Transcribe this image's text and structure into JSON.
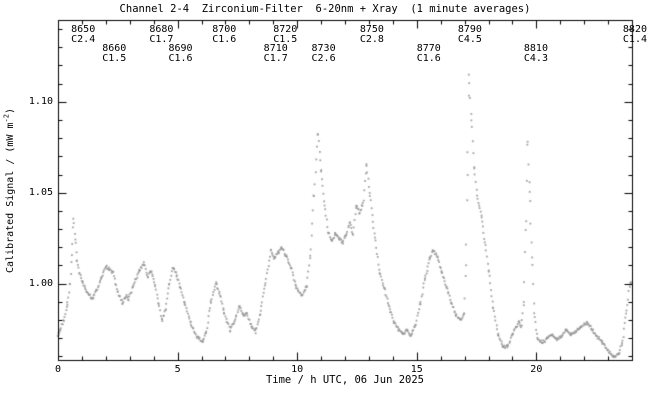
{
  "title": "Channel 2-4  Zirconium-Filter  6-20nm + Xray  (1 minute averages)",
  "x_axis": {
    "label": "Time / h UTC, 06 Jun 2025",
    "major_ticks": [
      {
        "v": 0,
        "label": "0"
      },
      {
        "v": 5,
        "label": "5"
      },
      {
        "v": 10,
        "label": "10"
      },
      {
        "v": 15,
        "label": "15"
      },
      {
        "v": 20,
        "label": "20"
      }
    ],
    "minor_step": 1,
    "range": [
      0,
      24
    ]
  },
  "y_axis": {
    "label_prefix": "Calibrated Signal / (mW m",
    "label_sup": "-2",
    "label_suffix": ")",
    "major_ticks": [
      {
        "v": 1.0,
        "label": "1.00"
      },
      {
        "v": 1.05,
        "label": "1.05"
      },
      {
        "v": 1.1,
        "label": "1.10"
      }
    ],
    "minor_step": 0.01,
    "range": [
      0.958,
      1.145
    ]
  },
  "colors": {
    "points": "#949494",
    "axis": "#000000",
    "background": "#ffffff"
  },
  "flare_annotations": [
    {
      "id": "8650",
      "class": "C2.4",
      "t": 0.55,
      "row": 1
    },
    {
      "id": "8660",
      "class": "C1.5",
      "t": 1.85,
      "row": 2
    },
    {
      "id": "8680",
      "class": "C1.7",
      "t": 3.82,
      "row": 1
    },
    {
      "id": "8690",
      "class": "C1.6",
      "t": 4.62,
      "row": 2
    },
    {
      "id": "8700",
      "class": "C1.6",
      "t": 6.45,
      "row": 1
    },
    {
      "id": "8710",
      "class": "C1.7",
      "t": 8.6,
      "row": 2
    },
    {
      "id": "8720",
      "class": "C1.5",
      "t": 9.0,
      "row": 1
    },
    {
      "id": "8730",
      "class": "C2.6",
      "t": 10.6,
      "row": 2
    },
    {
      "id": "8750",
      "class": "C2.8",
      "t": 12.62,
      "row": 1
    },
    {
      "id": "8770",
      "class": "C1.6",
      "t": 15.0,
      "row": 2
    },
    {
      "id": "8790",
      "class": "C4.5",
      "t": 16.72,
      "row": 1
    },
    {
      "id": "8810",
      "class": "C4.3",
      "t": 19.48,
      "row": 2
    },
    {
      "id": "8820",
      "class": "C1.4",
      "t": 23.62,
      "row": 1
    }
  ],
  "chart_data": {
    "type": "scatter",
    "title": "Channel 2-4  Zirconium-Filter  6-20nm + Xray  (1 minute averages)",
    "xlabel": "Time / h UTC, 06 Jun 2025",
    "ylabel": "Calibrated Signal / (mW m^-2)",
    "xlim": [
      0,
      24
    ],
    "ylim": [
      0.958,
      1.145
    ],
    "cadence": "1 minute averages",
    "key_points": [
      [
        0.0,
        0.972
      ],
      [
        0.1,
        0.9745
      ],
      [
        0.25,
        0.98
      ],
      [
        0.4,
        0.989
      ],
      [
        0.5,
        0.999
      ],
      [
        0.58,
        1.015
      ],
      [
        0.65,
        1.036
      ],
      [
        0.72,
        1.024
      ],
      [
        0.8,
        1.013
      ],
      [
        0.9,
        1.006
      ],
      [
        1.05,
        1.0
      ],
      [
        1.2,
        0.996
      ],
      [
        1.45,
        0.9915
      ],
      [
        1.6,
        0.996
      ],
      [
        1.8,
        1.003
      ],
      [
        2.0,
        1.0095
      ],
      [
        2.15,
        1.008
      ],
      [
        2.3,
        1.006
      ],
      [
        2.5,
        0.995
      ],
      [
        2.7,
        0.9895
      ],
      [
        2.85,
        0.9935
      ],
      [
        2.95,
        0.9915
      ],
      [
        3.15,
        0.999
      ],
      [
        3.4,
        1.007
      ],
      [
        3.6,
        1.011
      ],
      [
        3.75,
        1.004
      ],
      [
        3.9,
        1.007
      ],
      [
        4.05,
        1.0
      ],
      [
        4.2,
        0.989
      ],
      [
        4.35,
        0.9795
      ],
      [
        4.5,
        0.986
      ],
      [
        4.65,
        0.999
      ],
      [
        4.8,
        1.009
      ],
      [
        4.95,
        1.005
      ],
      [
        5.1,
        0.9985
      ],
      [
        5.3,
        0.989
      ],
      [
        5.55,
        0.978
      ],
      [
        5.8,
        0.971
      ],
      [
        6.05,
        0.968
      ],
      [
        6.2,
        0.973
      ],
      [
        6.4,
        0.99
      ],
      [
        6.6,
        1.0005
      ],
      [
        6.75,
        0.995
      ],
      [
        6.95,
        0.984
      ],
      [
        7.2,
        0.9745
      ],
      [
        7.4,
        0.98
      ],
      [
        7.6,
        0.988
      ],
      [
        7.75,
        0.982
      ],
      [
        7.9,
        0.9835
      ],
      [
        8.1,
        0.976
      ],
      [
        8.25,
        0.9735
      ],
      [
        8.45,
        0.983
      ],
      [
        8.65,
        0.999
      ],
      [
        8.9,
        1.018
      ],
      [
        9.05,
        1.014
      ],
      [
        9.2,
        1.017
      ],
      [
        9.35,
        1.0195
      ],
      [
        9.55,
        1.015
      ],
      [
        9.75,
        1.0085
      ],
      [
        9.95,
        0.998
      ],
      [
        10.2,
        0.9935
      ],
      [
        10.4,
        0.999
      ],
      [
        10.55,
        1.015
      ],
      [
        10.7,
        1.048
      ],
      [
        10.87,
        1.0825
      ],
      [
        11.0,
        1.062
      ],
      [
        11.15,
        1.043
      ],
      [
        11.3,
        1.028
      ],
      [
        11.45,
        1.0235
      ],
      [
        11.6,
        1.027
      ],
      [
        11.75,
        1.025
      ],
      [
        11.9,
        1.0225
      ],
      [
        12.05,
        1.027
      ],
      [
        12.2,
        1.0335
      ],
      [
        12.33,
        1.0265
      ],
      [
        12.48,
        1.0435
      ],
      [
        12.6,
        1.039
      ],
      [
        12.75,
        1.044
      ],
      [
        12.9,
        1.0655
      ],
      [
        13.05,
        1.048
      ],
      [
        13.25,
        1.025
      ],
      [
        13.45,
        1.006
      ],
      [
        13.65,
        0.997
      ],
      [
        13.85,
        0.987
      ],
      [
        14.05,
        0.979
      ],
      [
        14.25,
        0.9745
      ],
      [
        14.45,
        0.9725
      ],
      [
        14.6,
        0.9745
      ],
      [
        14.75,
        0.9715
      ],
      [
        14.95,
        0.977
      ],
      [
        15.15,
        0.989
      ],
      [
        15.35,
        1.003
      ],
      [
        15.55,
        1.014
      ],
      [
        15.68,
        1.0185
      ],
      [
        15.85,
        1.015
      ],
      [
        16.05,
        1.006
      ],
      [
        16.25,
        0.998
      ],
      [
        16.45,
        0.989
      ],
      [
        16.65,
        0.9825
      ],
      [
        16.85,
        0.9805
      ],
      [
        16.98,
        0.984
      ],
      [
        17.05,
        1.01
      ],
      [
        17.12,
        1.06
      ],
      [
        17.18,
        1.115
      ],
      [
        17.28,
        1.09
      ],
      [
        17.4,
        1.064
      ],
      [
        17.55,
        1.046
      ],
      [
        17.7,
        1.037
      ],
      [
        17.85,
        1.023
      ],
      [
        18.0,
        1.007
      ],
      [
        18.2,
        0.987
      ],
      [
        18.4,
        0.972
      ],
      [
        18.6,
        0.965
      ],
      [
        18.8,
        0.9655
      ],
      [
        19.0,
        0.972
      ],
      [
        19.15,
        0.976
      ],
      [
        19.28,
        0.979
      ],
      [
        19.38,
        0.9765
      ],
      [
        19.48,
        0.99
      ],
      [
        19.56,
        1.03
      ],
      [
        19.63,
        1.0775
      ],
      [
        19.72,
        1.05
      ],
      [
        19.82,
        1.015
      ],
      [
        19.92,
        0.983
      ],
      [
        20.05,
        0.97
      ],
      [
        20.25,
        0.9675
      ],
      [
        20.45,
        0.97
      ],
      [
        20.65,
        0.9725
      ],
      [
        20.85,
        0.9695
      ],
      [
        21.05,
        0.971
      ],
      [
        21.25,
        0.9745
      ],
      [
        21.45,
        0.972
      ],
      [
        21.65,
        0.9735
      ],
      [
        21.85,
        0.9765
      ],
      [
        22.1,
        0.9785
      ],
      [
        22.3,
        0.9755
      ],
      [
        22.5,
        0.9715
      ],
      [
        22.75,
        0.968
      ],
      [
        23.0,
        0.963
      ],
      [
        23.25,
        0.9595
      ],
      [
        23.45,
        0.9615
      ],
      [
        23.6,
        0.968
      ],
      [
        23.75,
        0.983
      ],
      [
        23.9,
        0.999
      ],
      [
        23.95,
        1.001
      ]
    ]
  }
}
